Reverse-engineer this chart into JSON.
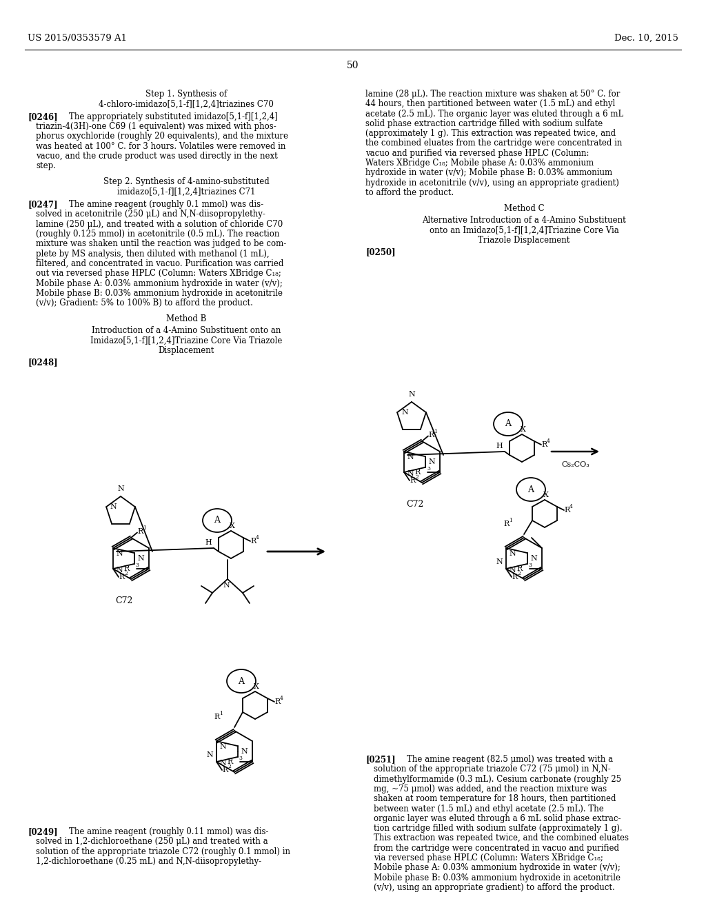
{
  "page_num": "50",
  "patent_left": "US 2015/0353579 A1",
  "patent_right": "Dec. 10, 2015",
  "background_color": "#ffffff",
  "text_color": "#000000",
  "font_size": 8.5,
  "leading": 0.0148
}
